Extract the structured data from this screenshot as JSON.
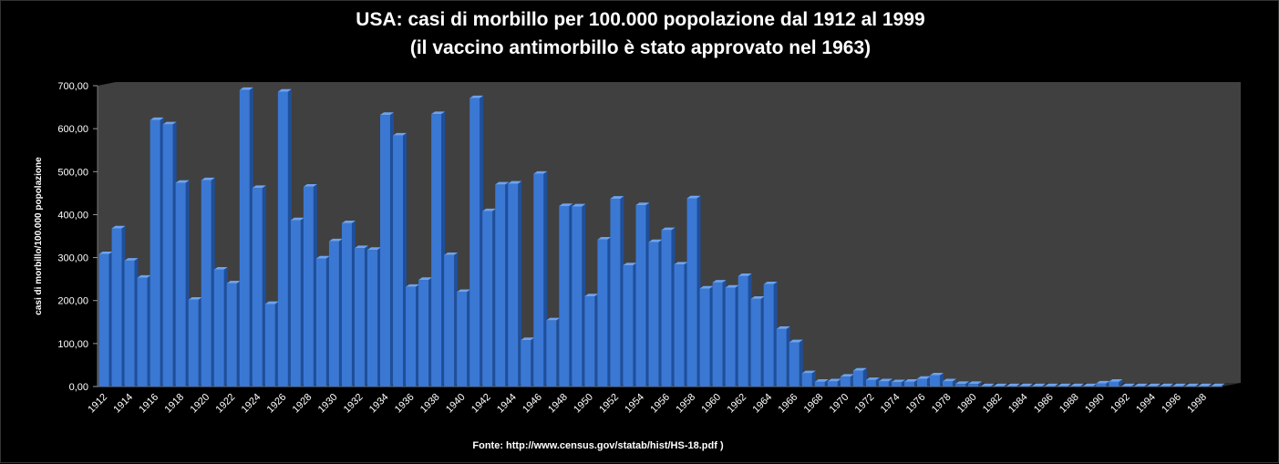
{
  "chart_data": {
    "type": "bar",
    "title": "USA: casi di morbillo per 100.000 popolazione dal 1912 al 1999",
    "subtitle": "(il vaccino antimorbillo è stato approvato nel 1963)",
    "ylabel": "casi di morbillo/100.000 popolazione",
    "xlabel": "",
    "ylim": [
      0,
      700
    ],
    "yticks": [
      "0,00",
      "100,00",
      "200,00",
      "300,00",
      "400,00",
      "500,00",
      "600,00",
      "700,00"
    ],
    "grid": false,
    "legend": "none",
    "bar_color": "#3a78d4",
    "plot_background": "#404040",
    "categories": [
      "1912",
      "1913",
      "1914",
      "1915",
      "1916",
      "1917",
      "1918",
      "1919",
      "1920",
      "1921",
      "1922",
      "1923",
      "1924",
      "1925",
      "1926",
      "1927",
      "1928",
      "1929",
      "1930",
      "1931",
      "1932",
      "1933",
      "1934",
      "1935",
      "1936",
      "1937",
      "1938",
      "1939",
      "1940",
      "1941",
      "1942",
      "1943",
      "1944",
      "1945",
      "1946",
      "1947",
      "1948",
      "1949",
      "1950",
      "1951",
      "1952",
      "1953",
      "1954",
      "1955",
      "1956",
      "1957",
      "1958",
      "1959",
      "1960",
      "1961",
      "1962",
      "1963",
      "1964",
      "1965",
      "1966",
      "1967",
      "1968",
      "1969",
      "1970",
      "1971",
      "1972",
      "1973",
      "1974",
      "1975",
      "1976",
      "1977",
      "1978",
      "1979",
      "1980",
      "1981",
      "1982",
      "1983",
      "1984",
      "1985",
      "1986",
      "1987",
      "1988",
      "1989",
      "1990",
      "1991",
      "1992",
      "1993",
      "1994",
      "1995",
      "1996",
      "1997",
      "1998",
      "1999"
    ],
    "tick_labels": [
      "1912",
      "1914",
      "1916",
      "1918",
      "1920",
      "1922",
      "1924",
      "1926",
      "1928",
      "1930",
      "1932",
      "1934",
      "1936",
      "1938",
      "1940",
      "1942",
      "1944",
      "1946",
      "1948",
      "1950",
      "1952",
      "1954",
      "1956",
      "1958",
      "1960",
      "1962",
      "1964",
      "1966",
      "1968",
      "1970",
      "1972",
      "1974",
      "1976",
      "1978",
      "1980",
      "1982",
      "1984",
      "1986",
      "1988",
      "1990",
      "1992",
      "1994",
      "1996",
      "1998"
    ],
    "values": [
      308,
      368,
      293,
      253,
      620,
      610,
      474,
      202,
      480,
      272,
      240,
      690,
      462,
      192,
      686,
      387,
      465,
      298,
      338,
      380,
      322,
      318,
      632,
      584,
      232,
      248,
      634,
      306,
      220,
      671,
      408,
      470,
      472,
      108,
      495,
      154,
      420,
      419,
      210,
      342,
      437,
      282,
      422,
      336,
      364,
      284,
      438,
      228,
      242,
      230,
      257,
      204,
      238,
      134,
      103,
      31,
      11,
      12,
      23,
      37,
      15,
      12,
      10,
      11,
      18,
      26,
      12,
      6,
      6,
      1,
      1,
      1,
      1,
      1,
      1,
      1,
      1,
      1,
      7,
      11,
      1,
      1,
      1,
      1,
      1,
      1,
      1,
      1
    ]
  },
  "source_text": "Fonte: http://www.census.gov/statab/hist/HS-18.pdf  )"
}
